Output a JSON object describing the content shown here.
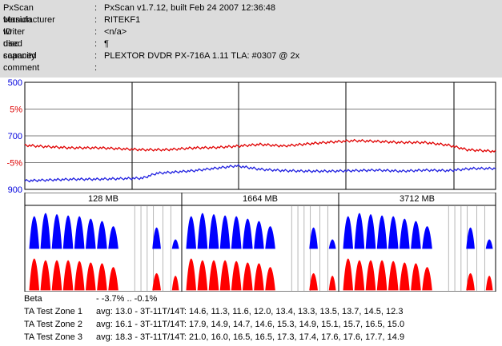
{
  "header": {
    "rows": [
      {
        "label": "PxScan version",
        "value": "PxScan v1.7.12, built Feb 24 2007 12:36:48"
      },
      {
        "label": "Manufacturer ID",
        "value": "RITEKF1"
      },
      {
        "label": "writer used",
        "value": "<n/a>"
      },
      {
        "label": "disc capacity",
        "value": "¶"
      },
      {
        "label": "scanned",
        "value": "PLEXTOR DVDR PX-716A 1.11 TLA: #0307 @ 2x"
      },
      {
        "label": "comment",
        "value": ""
      }
    ],
    "colon": ":"
  },
  "chart_data": [
    {
      "type": "line",
      "title": "",
      "y_tick_labels": [
        "500",
        "5%",
        "700",
        "-5%",
        "900"
      ],
      "y_tick_colors": [
        "#0000dd",
        "#dd0000",
        "#0000dd",
        "#dd0000",
        "#0000dd"
      ],
      "ylim": [
        500,
        900
      ],
      "grid": true,
      "series": [
        {
          "color": "#e00000",
          "x": [
            0,
            0.04,
            0.1,
            0.16,
            0.2,
            0.25,
            0.3,
            0.36,
            0.4,
            0.44,
            0.5,
            0.55,
            0.6,
            0.66,
            0.7,
            0.74,
            0.8,
            0.85,
            0.9,
            0.94,
            1.0
          ],
          "values": [
            735,
            740,
            745,
            745,
            748,
            752,
            752,
            745,
            744,
            740,
            732,
            738,
            730,
            722,
            718,
            720,
            725,
            725,
            735,
            752,
            758
          ]
        },
        {
          "color": "#2020e0",
          "x": [
            0,
            0.05,
            0.1,
            0.15,
            0.2,
            0.25,
            0.28,
            0.32,
            0.36,
            0.4,
            0.45,
            0.5,
            0.55,
            0.6,
            0.65,
            0.7,
            0.75,
            0.8,
            0.85,
            0.9,
            0.95,
            1.0
          ],
          "values": [
            868,
            865,
            862,
            862,
            860,
            858,
            840,
            835,
            830,
            822,
            812,
            825,
            830,
            832,
            832,
            830,
            828,
            832,
            828,
            830,
            822,
            822
          ]
        }
      ]
    },
    {
      "type": "area",
      "title": "",
      "categories": [
        "128 MB",
        "1664 MB",
        "3712 MB"
      ],
      "series": [
        {
          "color": "#0000ff",
          "peaks": [
            0.8,
            0.88,
            0.85,
            0.82,
            0.8,
            0.74,
            0.68,
            0.55,
            0.52,
            0.22
          ]
        },
        {
          "color": "#ff0000",
          "peaks": [
            0.85,
            0.8,
            0.8,
            0.8,
            0.78,
            0.74,
            0.72,
            0.62,
            0.45,
            0.38
          ]
        }
      ]
    }
  ],
  "stats": {
    "beta_label": "Beta",
    "beta_value": "- -3.7% .. -0.1%",
    "zones": [
      {
        "label": "TA Test Zone 1",
        "value": "avg: 13.0 - 3T-11T/14T: 14.6, 11.3, 11.6, 12.0, 13.4, 13.3, 13.5, 13.7, 14.5, 12.3"
      },
      {
        "label": "TA Test Zone 2",
        "value": "avg: 16.1 - 3T-11T/14T: 17.9, 14.9, 14.7, 14.6, 15.3, 14.9, 15.1, 15.7, 16.5, 15.0"
      },
      {
        "label": "TA Test Zone 3",
        "value": "avg: 18.3 - 3T-11T/14T: 21.0, 16.0, 16.5, 16.5, 17.3, 17.4, 17.6, 17.6, 17.7, 14.9"
      }
    ]
  }
}
